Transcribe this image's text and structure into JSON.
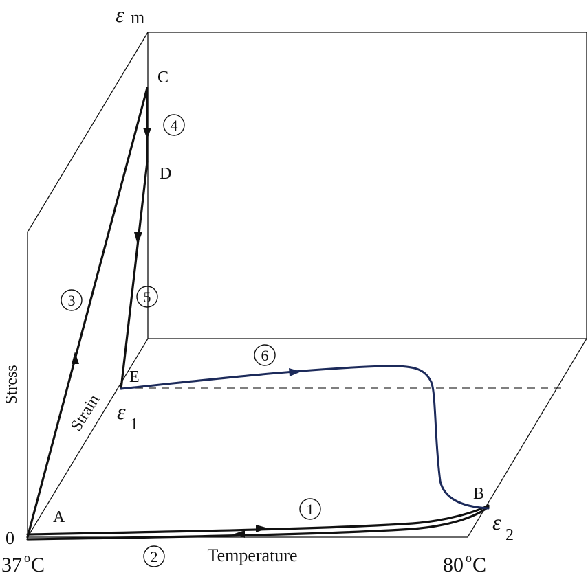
{
  "axes": {
    "stress": "Stress",
    "strain": "Strain",
    "temperature": "Temperature",
    "t_low": "37",
    "t_high": "80",
    "degree": "o",
    "unit": "C",
    "origin": "0"
  },
  "strain_levels": {
    "em_base": "ε",
    "em_sub": "m",
    "e1_base": "ε",
    "e1_sub": "1",
    "e2_base": "ε",
    "e2_sub": "2"
  },
  "points": {
    "A": "A",
    "B": "B",
    "C": "C",
    "D": "D",
    "E": "E"
  },
  "steps": {
    "s1": "1",
    "s2": "2",
    "s3": "3",
    "s4": "4",
    "s5": "5",
    "s6": "6"
  },
  "colors": {
    "black_path": "#111111",
    "blue_path": "#1c2a5a"
  }
}
